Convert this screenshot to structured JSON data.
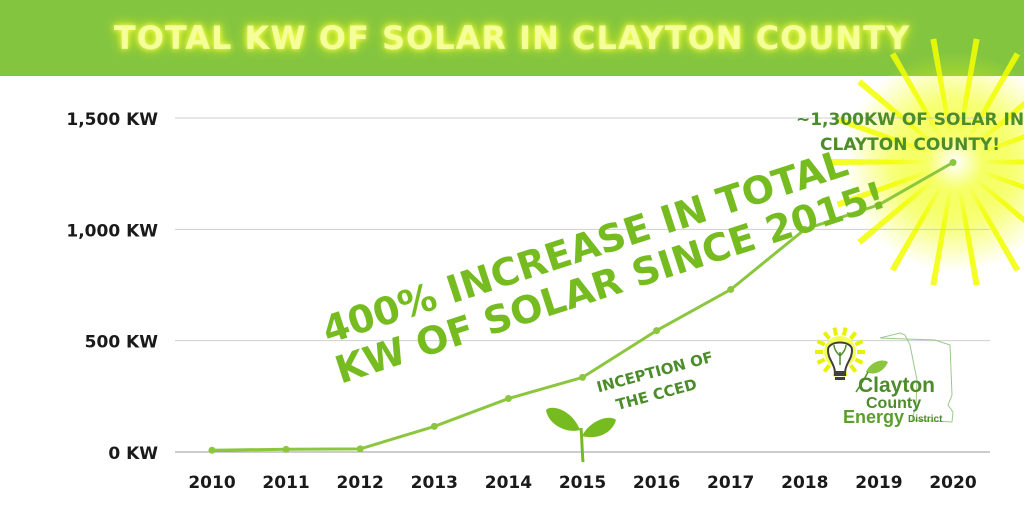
{
  "header": {
    "title": "TOTAL KW OF SOLAR IN CLAYTON COUNTY"
  },
  "colors": {
    "header_bg": "#84c540",
    "title_glow": "#f2ff00",
    "line": "#8cc63f",
    "annotation": "#76bc21",
    "text": "#1a1a1a",
    "logo_green": "#4c8c2a"
  },
  "annotations": {
    "increase": [
      "400% INCREASE IN TOTAL",
      "KW OF SOLAR SINCE 2015!"
    ],
    "callout": [
      "~1,300KW OF SOLAR IN",
      "CLAYTON COUNTY!"
    ],
    "inception": [
      "INCEPTION OF",
      "THE CCED"
    ]
  },
  "logo": {
    "line1": "Clayton",
    "line2": "County",
    "line3a": "Energy",
    "line3b": "District"
  },
  "chart_data": {
    "type": "line",
    "title": "TOTAL KW OF SOLAR IN CLAYTON COUNTY",
    "xlabel": "",
    "ylabel": "",
    "x": [
      2010,
      2011,
      2012,
      2013,
      2014,
      2015,
      2016,
      2017,
      2018,
      2019,
      2020
    ],
    "y": [
      8,
      12,
      14,
      115,
      240,
      335,
      545,
      730,
      1000,
      1110,
      1300
    ],
    "ylim": [
      0,
      1500
    ],
    "yticks": [
      0,
      500,
      1000,
      1500
    ],
    "ytick_labels": [
      "0 KW",
      "500 KW",
      "1,000 KW",
      "1,500 KW"
    ],
    "xtick_labels": [
      "2010",
      "2011",
      "2012",
      "2013",
      "2014",
      "2015",
      "2016",
      "2017",
      "2018",
      "2019",
      "2020"
    ],
    "grid": true,
    "legend": "none"
  }
}
